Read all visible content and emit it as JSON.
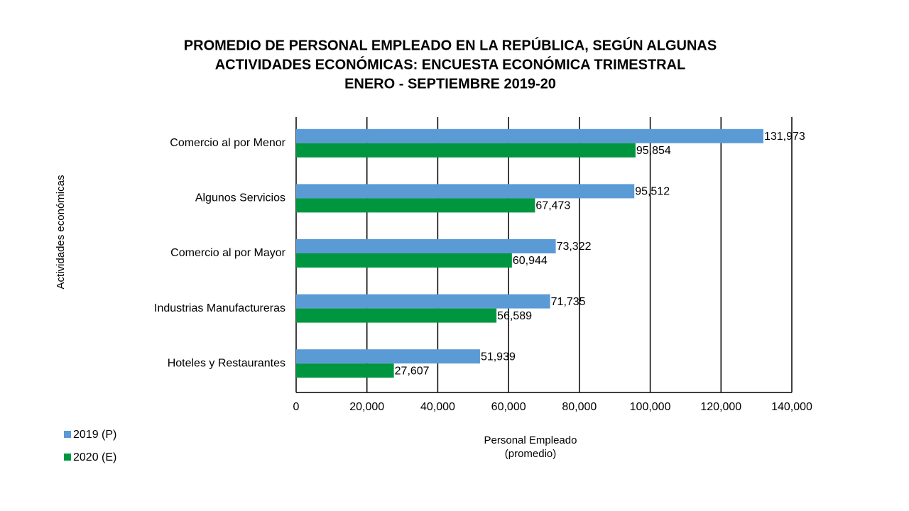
{
  "chart_data": {
    "type": "hbar",
    "title": [
      "PROMEDIO DE PERSONAL EMPLEADO EN LA REPÚBLICA,  SEGÚN ALGUNAS",
      "ACTIVIDADES ECONÓMICAS: ENCUESTA ECONÓMICA TRIMESTRAL",
      "ENERO - SEPTIEMBRE 2019-20"
    ],
    "xlabel": [
      "Personal Empleado",
      "(promedio)"
    ],
    "ylabel": "Actividades económicas",
    "categories": [
      "Comercio al por Menor",
      "Algunos Servicios",
      "Comercio al por Mayor",
      "Industrias Manufactureras",
      "Hoteles y Restaurantes"
    ],
    "series": [
      {
        "name": "2019 (P)",
        "color": "#5b9bd5",
        "values": [
          131973,
          95512,
          73322,
          71735,
          51939
        ],
        "value_labels": [
          "131,973",
          "95,512",
          "73,322",
          "71,735",
          "51,939"
        ]
      },
      {
        "name": "2020 (E)",
        "color": "#00963f",
        "values": [
          95854,
          67473,
          60944,
          56589,
          27607
        ],
        "value_labels": [
          "95,854",
          "67,473",
          "60,944",
          "56,589",
          "27,607"
        ]
      }
    ],
    "xlim": [
      0,
      140000
    ],
    "xticks": [
      0,
      {
        "value": 20000,
        "label": "20,000"
      },
      {
        "value": 40000,
        "label": "40,000"
      },
      {
        "value": 60000,
        "label": "60,000"
      },
      {
        "value": 80000,
        "label": "80,000"
      },
      {
        "value": 100000,
        "label": "100,000"
      },
      {
        "value": 120000,
        "label": "120,000"
      },
      {
        "value": 140000,
        "label": "140,000"
      }
    ],
    "grid": true,
    "legend": "bottom-left"
  }
}
